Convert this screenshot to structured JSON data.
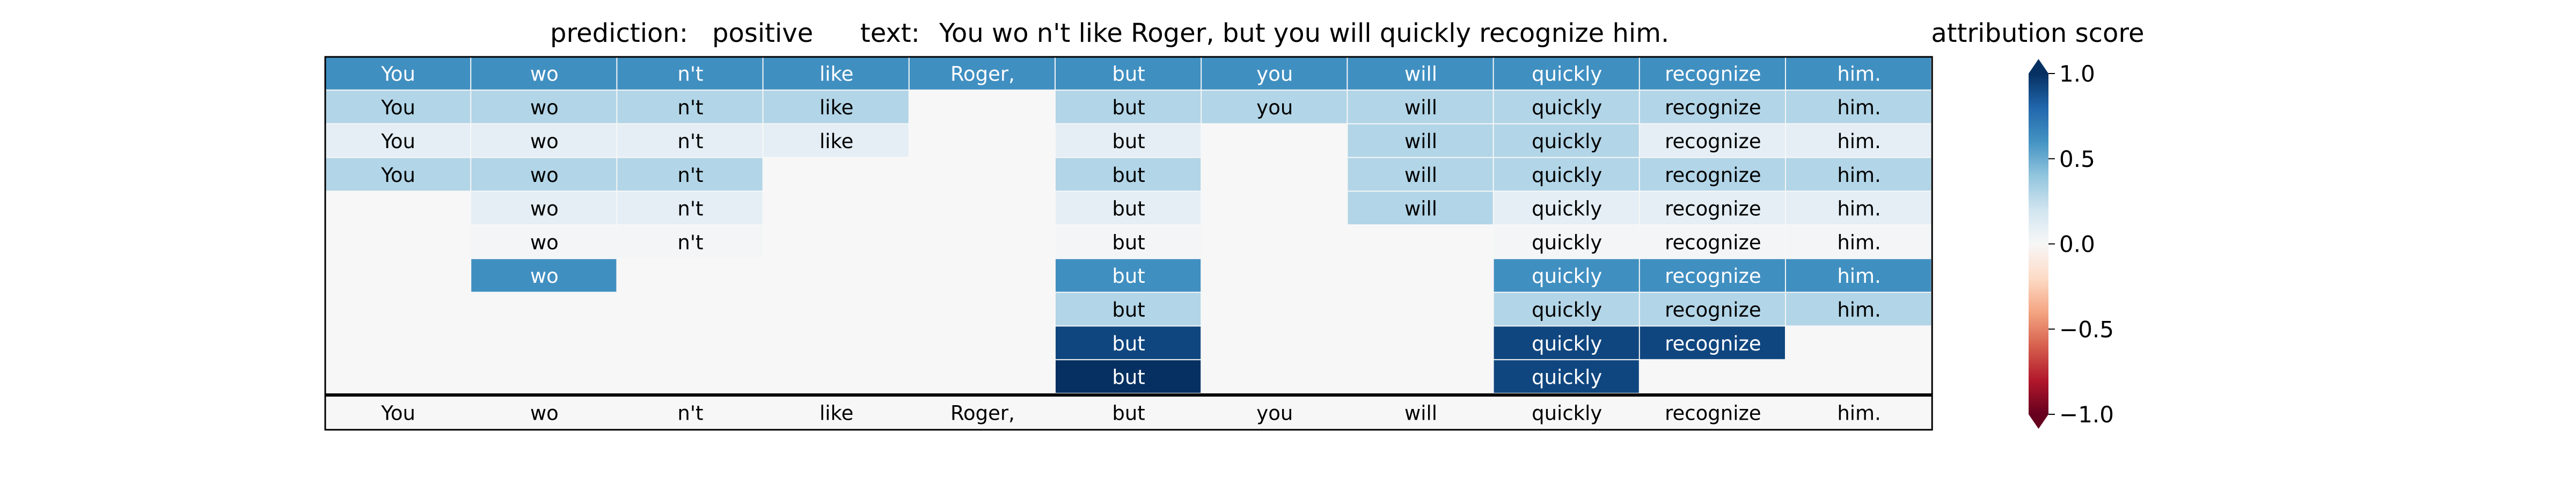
{
  "chart_data": {
    "type": "heatmap",
    "title": {
      "prediction_label": "prediction:",
      "prediction_value": "positive",
      "text_label": "text:",
      "text_value": "You wo n't like Roger, but you will quickly recognize him."
    },
    "tokens": [
      "You",
      "wo",
      "n't",
      "like",
      "Roger,",
      "but",
      "you",
      "will",
      "quickly",
      "recognize",
      "him."
    ],
    "rows": [
      [
        0.62,
        0.62,
        0.62,
        0.62,
        0.62,
        0.62,
        0.62,
        0.62,
        0.62,
        0.62,
        0.62
      ],
      [
        0.3,
        0.3,
        0.3,
        0.3,
        null,
        0.3,
        0.3,
        0.3,
        0.3,
        0.3,
        0.3
      ],
      [
        0.1,
        0.1,
        0.1,
        0.1,
        null,
        0.1,
        null,
        0.3,
        0.3,
        0.1,
        0.1
      ],
      [
        0.3,
        0.3,
        0.3,
        null,
        null,
        0.3,
        null,
        0.3,
        0.3,
        0.3,
        0.3
      ],
      [
        null,
        0.1,
        0.1,
        null,
        null,
        0.1,
        null,
        0.3,
        0.1,
        0.1,
        0.1
      ],
      [
        null,
        0.02,
        0.02,
        null,
        null,
        0.02,
        null,
        null,
        0.02,
        0.02,
        0.02
      ],
      [
        null,
        0.62,
        null,
        null,
        null,
        0.62,
        null,
        null,
        0.62,
        0.62,
        0.62
      ],
      [
        null,
        null,
        null,
        null,
        null,
        0.3,
        null,
        null,
        0.3,
        0.3,
        0.3
      ],
      [
        null,
        null,
        null,
        null,
        null,
        0.92,
        null,
        null,
        0.92,
        0.92,
        null
      ],
      [
        null,
        null,
        null,
        null,
        null,
        1.0,
        null,
        null,
        0.92,
        null,
        null
      ]
    ],
    "colorbar": {
      "label": "attribution score",
      "ticks": [
        "1.0",
        "0.5",
        "0.0",
        "−0.5",
        "−1.0"
      ],
      "tick_values": [
        1.0,
        0.5,
        0.0,
        -0.5,
        -1.0
      ],
      "range": [
        -1,
        1
      ],
      "colormap": "RdBu"
    }
  }
}
